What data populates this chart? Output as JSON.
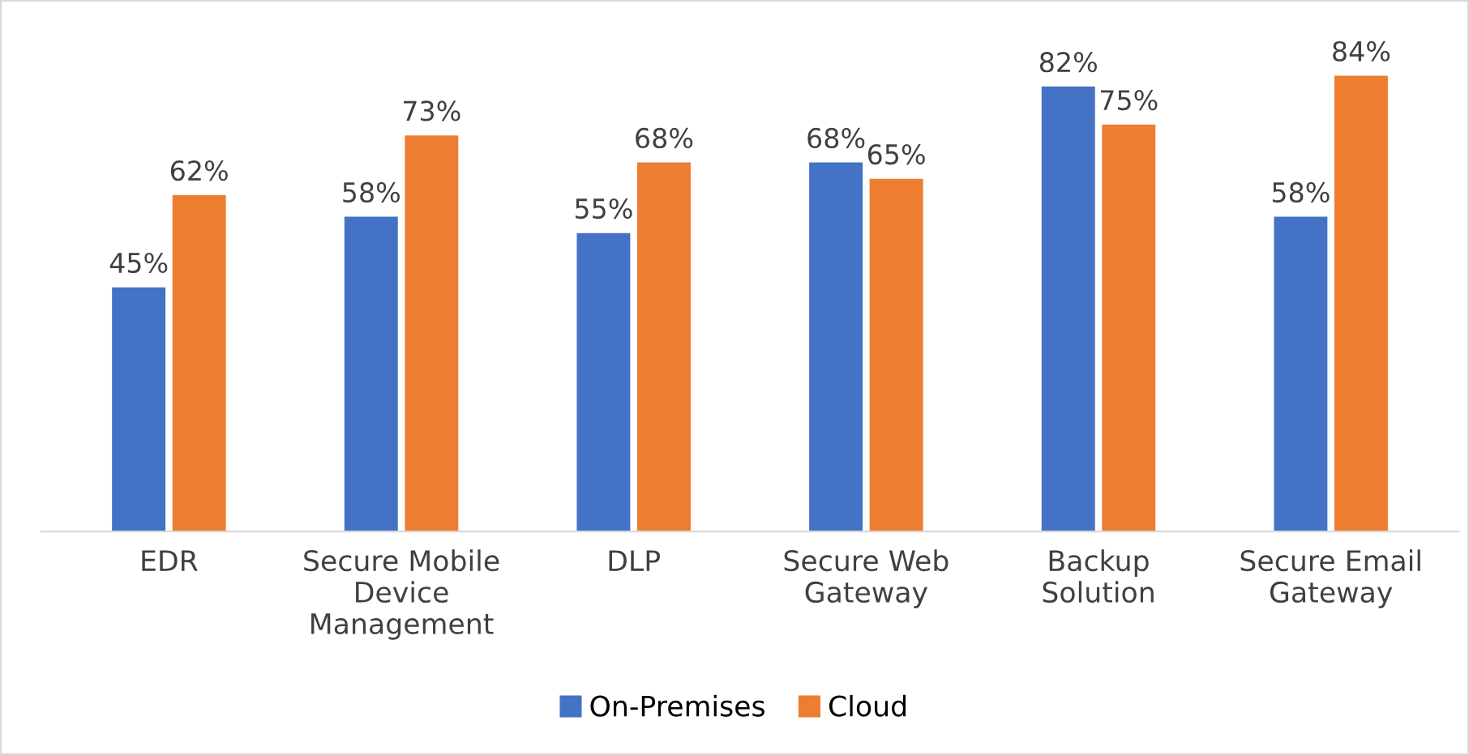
{
  "chart_data": {
    "type": "bar",
    "categories": [
      "EDR",
      "Secure Mobile Device Management",
      "DLP",
      "Secure Web Gateway",
      "Backup Solution",
      "Secure Email Gateway"
    ],
    "series": [
      {
        "name": "On-Premises",
        "color": "#4472c4",
        "values": [
          45,
          58,
          55,
          68,
          82,
          58
        ],
        "value_labels": [
          "45%",
          "58%",
          "55%",
          "68%",
          "82%",
          "58%"
        ]
      },
      {
        "name": "Cloud",
        "color": "#ed7d31",
        "values": [
          62,
          73,
          68,
          65,
          75,
          84
        ],
        "value_labels": [
          "62%",
          "73%",
          "68%",
          "65%",
          "75%",
          "84%"
        ]
      }
    ],
    "tick_labels": "x",
    "legend": "bottom",
    "grid": false
  }
}
